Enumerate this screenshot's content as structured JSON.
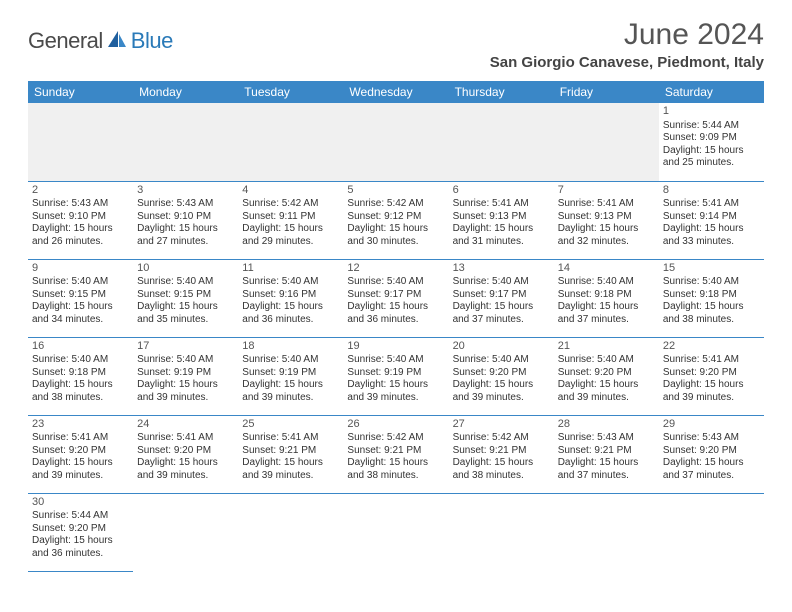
{
  "brand": {
    "general": "General",
    "blue": "Blue"
  },
  "title": "June 2024",
  "location": "San Giorgio Canavese, Piedmont, Italy",
  "colors": {
    "header_bg": "#3a87c7",
    "header_text": "#ffffff",
    "row_border": "#3a87c7",
    "empty_bg": "#f0f0f0",
    "text": "#333333",
    "title_text": "#555555",
    "brand_blue": "#2a7ab8",
    "brand_gray": "#4a4a4a"
  },
  "daynames": [
    "Sunday",
    "Monday",
    "Tuesday",
    "Wednesday",
    "Thursday",
    "Friday",
    "Saturday"
  ],
  "weeks": [
    [
      null,
      null,
      null,
      null,
      null,
      null,
      {
        "n": "1",
        "sr": "5:44 AM",
        "ss": "9:09 PM",
        "dl": "15 hours and 25 minutes."
      }
    ],
    [
      {
        "n": "2",
        "sr": "5:43 AM",
        "ss": "9:10 PM",
        "dl": "15 hours and 26 minutes."
      },
      {
        "n": "3",
        "sr": "5:43 AM",
        "ss": "9:10 PM",
        "dl": "15 hours and 27 minutes."
      },
      {
        "n": "4",
        "sr": "5:42 AM",
        "ss": "9:11 PM",
        "dl": "15 hours and 29 minutes."
      },
      {
        "n": "5",
        "sr": "5:42 AM",
        "ss": "9:12 PM",
        "dl": "15 hours and 30 minutes."
      },
      {
        "n": "6",
        "sr": "5:41 AM",
        "ss": "9:13 PM",
        "dl": "15 hours and 31 minutes."
      },
      {
        "n": "7",
        "sr": "5:41 AM",
        "ss": "9:13 PM",
        "dl": "15 hours and 32 minutes."
      },
      {
        "n": "8",
        "sr": "5:41 AM",
        "ss": "9:14 PM",
        "dl": "15 hours and 33 minutes."
      }
    ],
    [
      {
        "n": "9",
        "sr": "5:40 AM",
        "ss": "9:15 PM",
        "dl": "15 hours and 34 minutes."
      },
      {
        "n": "10",
        "sr": "5:40 AM",
        "ss": "9:15 PM",
        "dl": "15 hours and 35 minutes."
      },
      {
        "n": "11",
        "sr": "5:40 AM",
        "ss": "9:16 PM",
        "dl": "15 hours and 36 minutes."
      },
      {
        "n": "12",
        "sr": "5:40 AM",
        "ss": "9:17 PM",
        "dl": "15 hours and 36 minutes."
      },
      {
        "n": "13",
        "sr": "5:40 AM",
        "ss": "9:17 PM",
        "dl": "15 hours and 37 minutes."
      },
      {
        "n": "14",
        "sr": "5:40 AM",
        "ss": "9:18 PM",
        "dl": "15 hours and 37 minutes."
      },
      {
        "n": "15",
        "sr": "5:40 AM",
        "ss": "9:18 PM",
        "dl": "15 hours and 38 minutes."
      }
    ],
    [
      {
        "n": "16",
        "sr": "5:40 AM",
        "ss": "9:18 PM",
        "dl": "15 hours and 38 minutes."
      },
      {
        "n": "17",
        "sr": "5:40 AM",
        "ss": "9:19 PM",
        "dl": "15 hours and 39 minutes."
      },
      {
        "n": "18",
        "sr": "5:40 AM",
        "ss": "9:19 PM",
        "dl": "15 hours and 39 minutes."
      },
      {
        "n": "19",
        "sr": "5:40 AM",
        "ss": "9:19 PM",
        "dl": "15 hours and 39 minutes."
      },
      {
        "n": "20",
        "sr": "5:40 AM",
        "ss": "9:20 PM",
        "dl": "15 hours and 39 minutes."
      },
      {
        "n": "21",
        "sr": "5:40 AM",
        "ss": "9:20 PM",
        "dl": "15 hours and 39 minutes."
      },
      {
        "n": "22",
        "sr": "5:41 AM",
        "ss": "9:20 PM",
        "dl": "15 hours and 39 minutes."
      }
    ],
    [
      {
        "n": "23",
        "sr": "5:41 AM",
        "ss": "9:20 PM",
        "dl": "15 hours and 39 minutes."
      },
      {
        "n": "24",
        "sr": "5:41 AM",
        "ss": "9:20 PM",
        "dl": "15 hours and 39 minutes."
      },
      {
        "n": "25",
        "sr": "5:41 AM",
        "ss": "9:21 PM",
        "dl": "15 hours and 39 minutes."
      },
      {
        "n": "26",
        "sr": "5:42 AM",
        "ss": "9:21 PM",
        "dl": "15 hours and 38 minutes."
      },
      {
        "n": "27",
        "sr": "5:42 AM",
        "ss": "9:21 PM",
        "dl": "15 hours and 38 minutes."
      },
      {
        "n": "28",
        "sr": "5:43 AM",
        "ss": "9:21 PM",
        "dl": "15 hours and 37 minutes."
      },
      {
        "n": "29",
        "sr": "5:43 AM",
        "ss": "9:20 PM",
        "dl": "15 hours and 37 minutes."
      }
    ],
    [
      {
        "n": "30",
        "sr": "5:44 AM",
        "ss": "9:20 PM",
        "dl": "15 hours and 36 minutes."
      },
      null,
      null,
      null,
      null,
      null,
      null
    ]
  ],
  "labels": {
    "sunrise": "Sunrise:",
    "sunset": "Sunset:",
    "daylight": "Daylight:"
  }
}
